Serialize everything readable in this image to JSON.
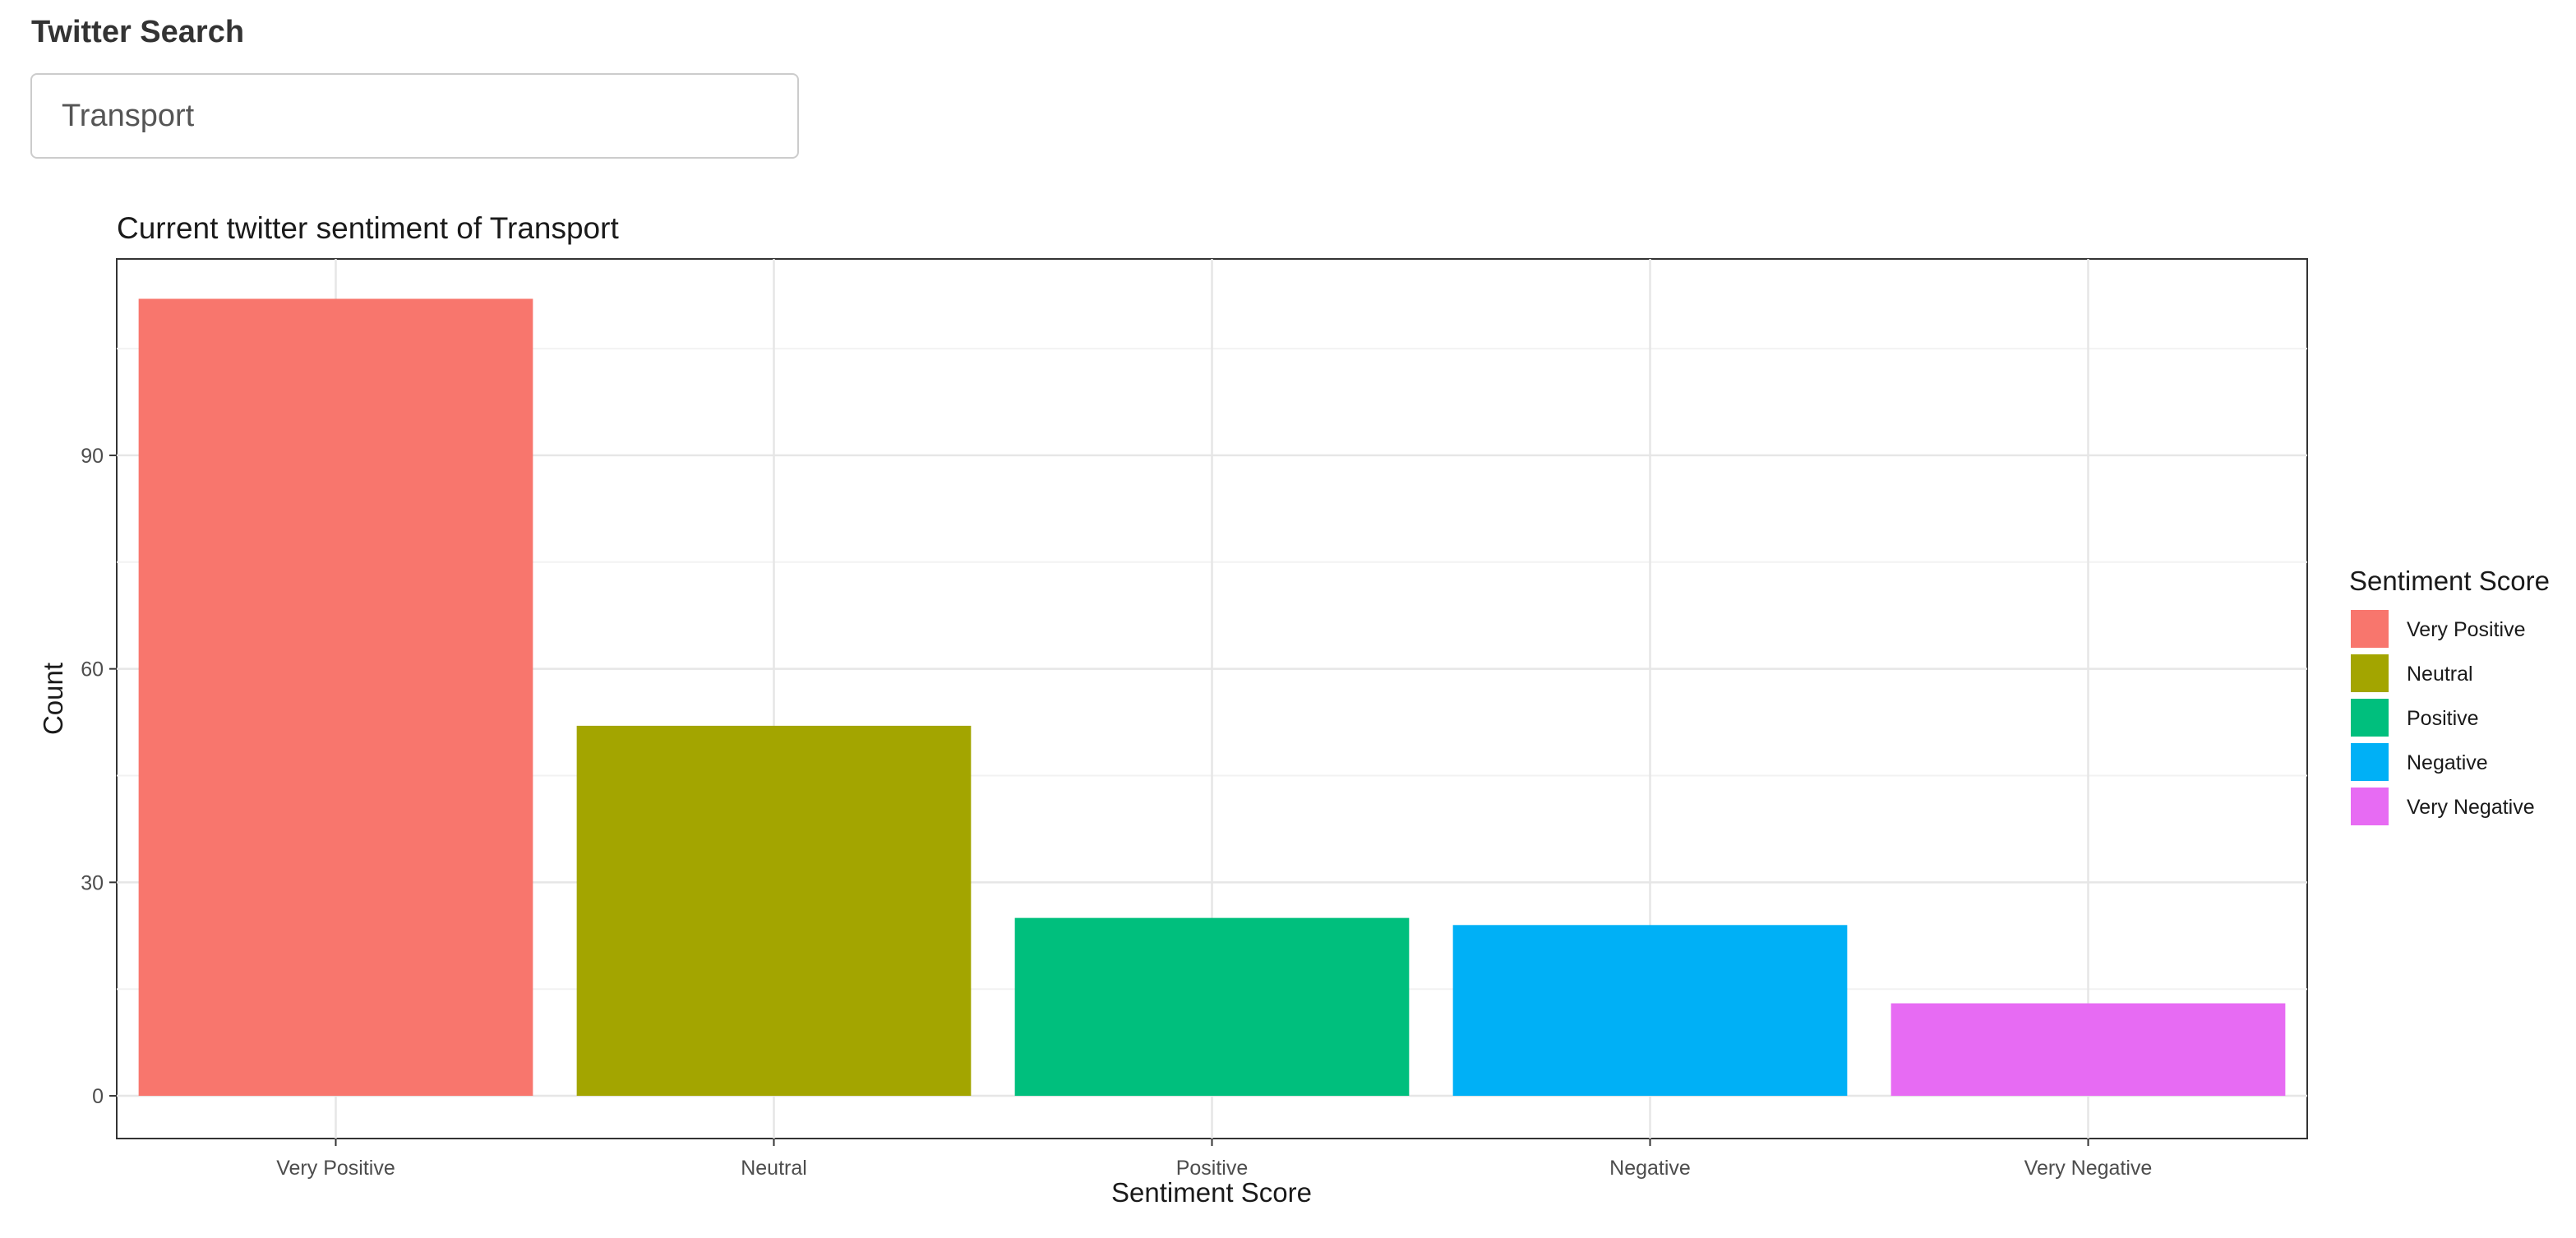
{
  "search": {
    "label": "Twitter Search",
    "value": "Transport"
  },
  "chart_data": {
    "type": "bar",
    "title": "Current twitter sentiment of Transport",
    "xlabel": "Sentiment Score",
    "ylabel": "Count",
    "categories": [
      "Very Positive",
      "Neutral",
      "Positive",
      "Negative",
      "Very Negative"
    ],
    "values": [
      112,
      52,
      25,
      24,
      13
    ],
    "colors": [
      "#F8766D",
      "#A3A500",
      "#00BF7D",
      "#00B0F6",
      "#E76BF3"
    ],
    "ylim": [
      -6,
      117.6
    ],
    "yticks": [
      0,
      30,
      60,
      90
    ],
    "grid": true,
    "legend": {
      "title": "Sentiment Score",
      "position": "right",
      "entries": [
        "Very Positive",
        "Neutral",
        "Positive",
        "Negative",
        "Very Negative"
      ]
    }
  }
}
